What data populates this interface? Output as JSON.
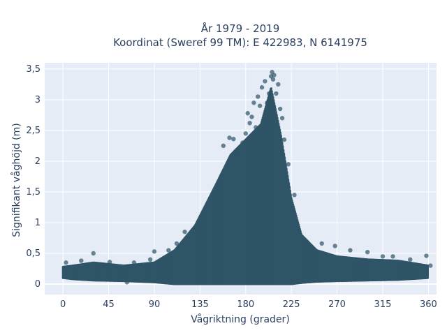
{
  "chart_data": {
    "type": "scatter",
    "title_line1": "År 1979 - 2019",
    "title_line2": "Koordinat (Sweref 99 TM): E 422983, N 6141975",
    "xlabel": "Vågriktning (grader)",
    "ylabel": "Signifikant våghöjd (m)",
    "xlim": [
      -18,
      368
    ],
    "ylim": [
      -0.17,
      3.6
    ],
    "x_ticks": [
      0,
      45,
      90,
      135,
      180,
      225,
      270,
      315,
      360
    ],
    "x_tick_labels": [
      "0",
      "45",
      "90",
      "135",
      "180",
      "225",
      "270",
      "315",
      "360"
    ],
    "y_ticks": [
      0,
      0.5,
      1,
      1.5,
      2,
      2.5,
      3,
      3.5
    ],
    "y_tick_labels": [
      "0",
      "0,5",
      "1",
      "1,5",
      "2",
      "2,5",
      "3",
      "3,5"
    ],
    "grid": true,
    "background_color": "#e5ecf6",
    "marker_color": "#2f5467",
    "envelope": {
      "x": [
        0,
        10,
        30,
        60,
        90,
        110,
        130,
        150,
        165,
        180,
        195,
        205,
        215,
        225,
        235,
        250,
        270,
        300,
        330,
        360
      ],
      "upper": [
        0.28,
        0.3,
        0.35,
        0.3,
        0.35,
        0.55,
        0.95,
        1.6,
        2.1,
        2.35,
        2.6,
        3.2,
        2.4,
        1.4,
        0.8,
        0.55,
        0.45,
        0.4,
        0.38,
        0.3
      ],
      "lower": [
        0.1,
        0.08,
        0.06,
        0.05,
        0.03,
        0.0,
        0.0,
        0.0,
        0.0,
        0.0,
        0.0,
        0.0,
        0.0,
        0.0,
        0.02,
        0.04,
        0.05,
        0.06,
        0.07,
        0.1
      ]
    },
    "points": [
      [
        3,
        0.35
      ],
      [
        18,
        0.38
      ],
      [
        30,
        0.5
      ],
      [
        41,
        0.3
      ],
      [
        46,
        0.36
      ],
      [
        63,
        0.03
      ],
      [
        70,
        0.35
      ],
      [
        86,
        0.4
      ],
      [
        90,
        0.53
      ],
      [
        104,
        0.55
      ],
      [
        112,
        0.66
      ],
      [
        120,
        0.85
      ],
      [
        255,
        0.66
      ],
      [
        268,
        0.62
      ],
      [
        283,
        0.55
      ],
      [
        300,
        0.52
      ],
      [
        315,
        0.45
      ],
      [
        325,
        0.45
      ],
      [
        342,
        0.4
      ],
      [
        358,
        0.46
      ],
      [
        362,
        0.3
      ],
      [
        158,
        2.25
      ],
      [
        164,
        2.38
      ],
      [
        168,
        2.36
      ],
      [
        172,
        2.15
      ],
      [
        177,
        2.3
      ],
      [
        180,
        2.45
      ],
      [
        182,
        2.78
      ],
      [
        184,
        2.62
      ],
      [
        186,
        2.72
      ],
      [
        188,
        2.95
      ],
      [
        190,
        2.55
      ],
      [
        192,
        3.05
      ],
      [
        194,
        2.9
      ],
      [
        196,
        3.2
      ],
      [
        199,
        3.3
      ],
      [
        201,
        2.95
      ],
      [
        203,
        3.1
      ],
      [
        205,
        3.38
      ],
      [
        206,
        3.45
      ],
      [
        207,
        3.33
      ],
      [
        208,
        3.4
      ],
      [
        210,
        3.1
      ],
      [
        212,
        3.25
      ],
      [
        214,
        2.85
      ],
      [
        216,
        2.7
      ],
      [
        218,
        2.35
      ],
      [
        222,
        1.95
      ],
      [
        228,
        1.45
      ]
    ]
  }
}
